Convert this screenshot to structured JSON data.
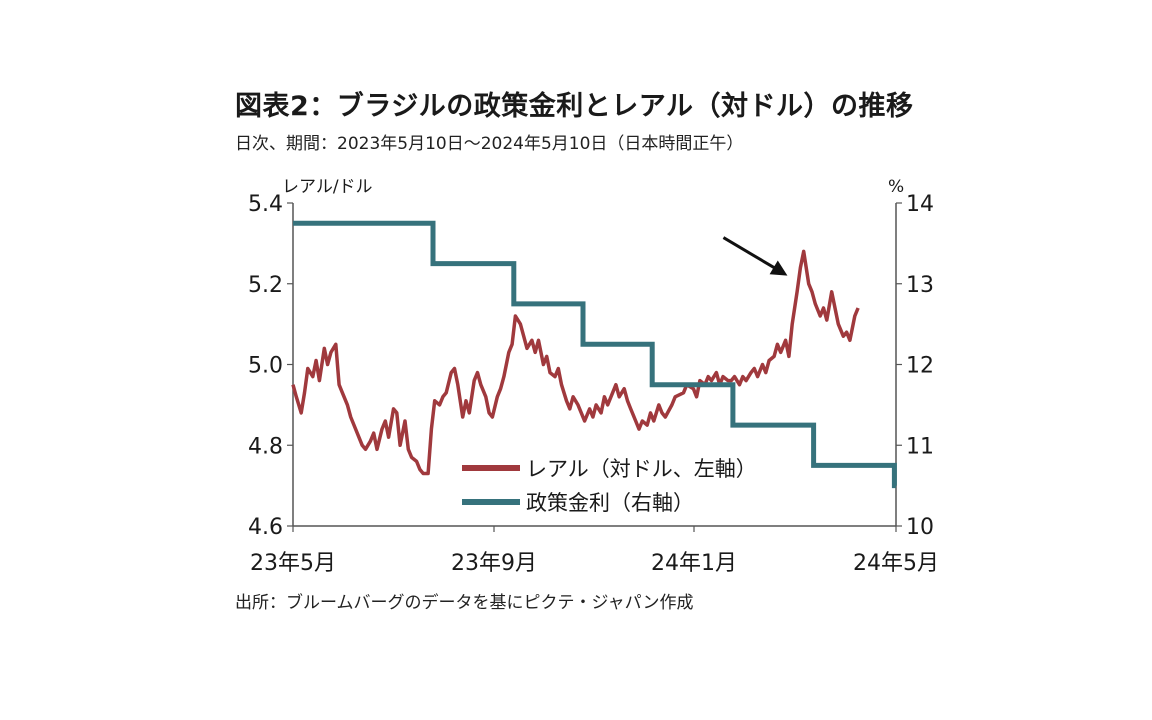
{
  "header": {
    "title": "図表2：ブラジルの政策金利とレアル（対ドル）の推移",
    "subtitle": "日次、期間：2023年5月10日～2024年5月10日（日本時間正午）"
  },
  "footer": {
    "source": "出所：ブルームバーグのデータを基にピクテ・ジャパン作成"
  },
  "colors": {
    "brl": "#a0393d",
    "selic": "#36727c",
    "axis": "#555555",
    "arrow": "#111111"
  },
  "chart_data": {
    "type": "line",
    "y_left": {
      "label": "レアル/ドル",
      "range": [
        4.6,
        5.4
      ],
      "ticks": [
        "4.6",
        "4.8",
        "5.0",
        "5.2",
        "5.4"
      ]
    },
    "y_right": {
      "label": "%",
      "range": [
        10,
        14
      ],
      "ticks": [
        "10",
        "11",
        "12",
        "13",
        "14"
      ]
    },
    "x": {
      "range": [
        "2023-05-10",
        "2024-05-10"
      ],
      "tick_labels": [
        "23年5月",
        "23年9月",
        "24年1月",
        "24年5月"
      ]
    },
    "legend": {
      "placement": "bottom-right",
      "entries": [
        "レアル（対ドル、左軸）",
        "政策金利（右軸）"
      ]
    },
    "series": [
      {
        "name": "レアル（対ドル、左軸）",
        "axis": "left",
        "points": [
          [
            "2023-05-10",
            4.95
          ],
          [
            "2023-05-12",
            4.92
          ],
          [
            "2023-05-15",
            4.88
          ],
          [
            "2023-05-17",
            4.93
          ],
          [
            "2023-05-19",
            4.99
          ],
          [
            "2023-05-22",
            4.97
          ],
          [
            "2023-05-24",
            5.01
          ],
          [
            "2023-05-26",
            4.96
          ],
          [
            "2023-05-29",
            5.04
          ],
          [
            "2023-05-31",
            5.0
          ],
          [
            "2023-06-02",
            5.03
          ],
          [
            "2023-06-05",
            5.05
          ],
          [
            "2023-06-07",
            4.95
          ],
          [
            "2023-06-09",
            4.93
          ],
          [
            "2023-06-12",
            4.9
          ],
          [
            "2023-06-14",
            4.87
          ],
          [
            "2023-06-16",
            4.85
          ],
          [
            "2023-06-19",
            4.82
          ],
          [
            "2023-06-21",
            4.8
          ],
          [
            "2023-06-23",
            4.79
          ],
          [
            "2023-06-26",
            4.81
          ],
          [
            "2023-06-28",
            4.83
          ],
          [
            "2023-06-30",
            4.79
          ],
          [
            "2023-07-03",
            4.84
          ],
          [
            "2023-07-05",
            4.86
          ],
          [
            "2023-07-07",
            4.82
          ],
          [
            "2023-07-10",
            4.89
          ],
          [
            "2023-07-12",
            4.88
          ],
          [
            "2023-07-14",
            4.8
          ],
          [
            "2023-07-17",
            4.86
          ],
          [
            "2023-07-19",
            4.79
          ],
          [
            "2023-07-21",
            4.77
          ],
          [
            "2023-07-24",
            4.76
          ],
          [
            "2023-07-26",
            4.74
          ],
          [
            "2023-07-28",
            4.73
          ],
          [
            "2023-07-31",
            4.73
          ],
          [
            "2023-08-02",
            4.84
          ],
          [
            "2023-08-04",
            4.91
          ],
          [
            "2023-08-07",
            4.9
          ],
          [
            "2023-08-09",
            4.92
          ],
          [
            "2023-08-11",
            4.93
          ],
          [
            "2023-08-14",
            4.98
          ],
          [
            "2023-08-16",
            4.99
          ],
          [
            "2023-08-18",
            4.95
          ],
          [
            "2023-08-21",
            4.87
          ],
          [
            "2023-08-23",
            4.91
          ],
          [
            "2023-08-25",
            4.88
          ],
          [
            "2023-08-28",
            4.96
          ],
          [
            "2023-08-30",
            4.98
          ],
          [
            "2023-09-01",
            4.95
          ],
          [
            "2023-09-04",
            4.92
          ],
          [
            "2023-09-06",
            4.88
          ],
          [
            "2023-09-08",
            4.87
          ],
          [
            "2023-09-11",
            4.92
          ],
          [
            "2023-09-13",
            4.94
          ],
          [
            "2023-09-15",
            4.97
          ],
          [
            "2023-09-18",
            5.03
          ],
          [
            "2023-09-20",
            5.05
          ],
          [
            "2023-09-22",
            5.12
          ],
          [
            "2023-09-25",
            5.1
          ],
          [
            "2023-09-27",
            5.07
          ],
          [
            "2023-09-29",
            5.04
          ],
          [
            "2023-10-02",
            5.06
          ],
          [
            "2023-10-04",
            5.03
          ],
          [
            "2023-10-06",
            5.06
          ],
          [
            "2023-10-09",
            5.0
          ],
          [
            "2023-10-11",
            5.02
          ],
          [
            "2023-10-13",
            4.98
          ],
          [
            "2023-10-16",
            4.97
          ],
          [
            "2023-10-18",
            4.99
          ],
          [
            "2023-10-20",
            4.95
          ],
          [
            "2023-10-23",
            4.91
          ],
          [
            "2023-10-25",
            4.89
          ],
          [
            "2023-10-27",
            4.92
          ],
          [
            "2023-10-30",
            4.9
          ],
          [
            "2023-11-01",
            4.88
          ],
          [
            "2023-11-03",
            4.86
          ],
          [
            "2023-11-06",
            4.89
          ],
          [
            "2023-11-08",
            4.87
          ],
          [
            "2023-11-10",
            4.9
          ],
          [
            "2023-11-13",
            4.88
          ],
          [
            "2023-11-15",
            4.92
          ],
          [
            "2023-11-17",
            4.9
          ],
          [
            "2023-11-20",
            4.93
          ],
          [
            "2023-11-22",
            4.95
          ],
          [
            "2023-11-24",
            4.92
          ],
          [
            "2023-11-27",
            4.94
          ],
          [
            "2023-11-29",
            4.91
          ],
          [
            "2023-12-01",
            4.89
          ],
          [
            "2023-12-04",
            4.86
          ],
          [
            "2023-12-06",
            4.84
          ],
          [
            "2023-12-08",
            4.86
          ],
          [
            "2023-12-11",
            4.85
          ],
          [
            "2023-12-13",
            4.88
          ],
          [
            "2023-12-15",
            4.86
          ],
          [
            "2023-12-18",
            4.9
          ],
          [
            "2023-12-20",
            4.88
          ],
          [
            "2023-12-22",
            4.87
          ],
          [
            "2023-12-26",
            4.9
          ],
          [
            "2023-12-28",
            4.92
          ],
          [
            "2024-01-02",
            4.93
          ],
          [
            "2024-01-04",
            4.95
          ],
          [
            "2024-01-08",
            4.94
          ],
          [
            "2024-01-10",
            4.92
          ],
          [
            "2024-01-12",
            4.96
          ],
          [
            "2024-01-15",
            4.95
          ],
          [
            "2024-01-17",
            4.97
          ],
          [
            "2024-01-19",
            4.96
          ],
          [
            "2024-01-22",
            4.98
          ],
          [
            "2024-01-24",
            4.95
          ],
          [
            "2024-01-26",
            4.97
          ],
          [
            "2024-01-29",
            4.96
          ],
          [
            "2024-01-31",
            4.96
          ],
          [
            "2024-02-02",
            4.97
          ],
          [
            "2024-02-05",
            4.95
          ],
          [
            "2024-02-07",
            4.97
          ],
          [
            "2024-02-09",
            4.96
          ],
          [
            "2024-02-12",
            4.98
          ],
          [
            "2024-02-14",
            4.99
          ],
          [
            "2024-02-16",
            4.97
          ],
          [
            "2024-02-19",
            5.0
          ],
          [
            "2024-02-21",
            4.98
          ],
          [
            "2024-02-23",
            5.01
          ],
          [
            "2024-02-26",
            5.02
          ],
          [
            "2024-02-28",
            5.05
          ],
          [
            "2024-03-01",
            5.03
          ],
          [
            "2024-03-04",
            5.06
          ],
          [
            "2024-03-06",
            5.02
          ],
          [
            "2024-03-08",
            5.1
          ],
          [
            "2024-03-11",
            5.18
          ],
          [
            "2024-03-13",
            5.24
          ],
          [
            "2024-03-15",
            5.28
          ],
          [
            "2024-03-18",
            5.2
          ],
          [
            "2024-03-20",
            5.18
          ],
          [
            "2024-03-22",
            5.15
          ],
          [
            "2024-03-25",
            5.12
          ],
          [
            "2024-03-27",
            5.14
          ],
          [
            "2024-03-29",
            5.11
          ],
          [
            "2024-04-01",
            5.18
          ],
          [
            "2024-04-03",
            5.14
          ],
          [
            "2024-04-05",
            5.1
          ],
          [
            "2024-04-08",
            5.07
          ],
          [
            "2024-04-10",
            5.08
          ],
          [
            "2024-04-12",
            5.06
          ],
          [
            "2024-04-15",
            5.12
          ],
          [
            "2024-04-17",
            5.14
          ]
        ]
      },
      {
        "name": "政策金利（右軸）",
        "axis": "right",
        "steps": [
          [
            "2023-05-10",
            13.75
          ],
          [
            "2023-08-03",
            13.25
          ],
          [
            "2023-09-21",
            12.75
          ],
          [
            "2023-11-02",
            12.25
          ],
          [
            "2023-12-14",
            11.75
          ],
          [
            "2024-02-01",
            11.25
          ],
          [
            "2024-03-21",
            10.75
          ],
          [
            "2024-05-09",
            10.5
          ]
        ],
        "end": "2024-05-10"
      }
    ],
    "annotation": {
      "type": "arrow",
      "points_to": [
        "2024-03-13",
        5.24
      ]
    }
  }
}
